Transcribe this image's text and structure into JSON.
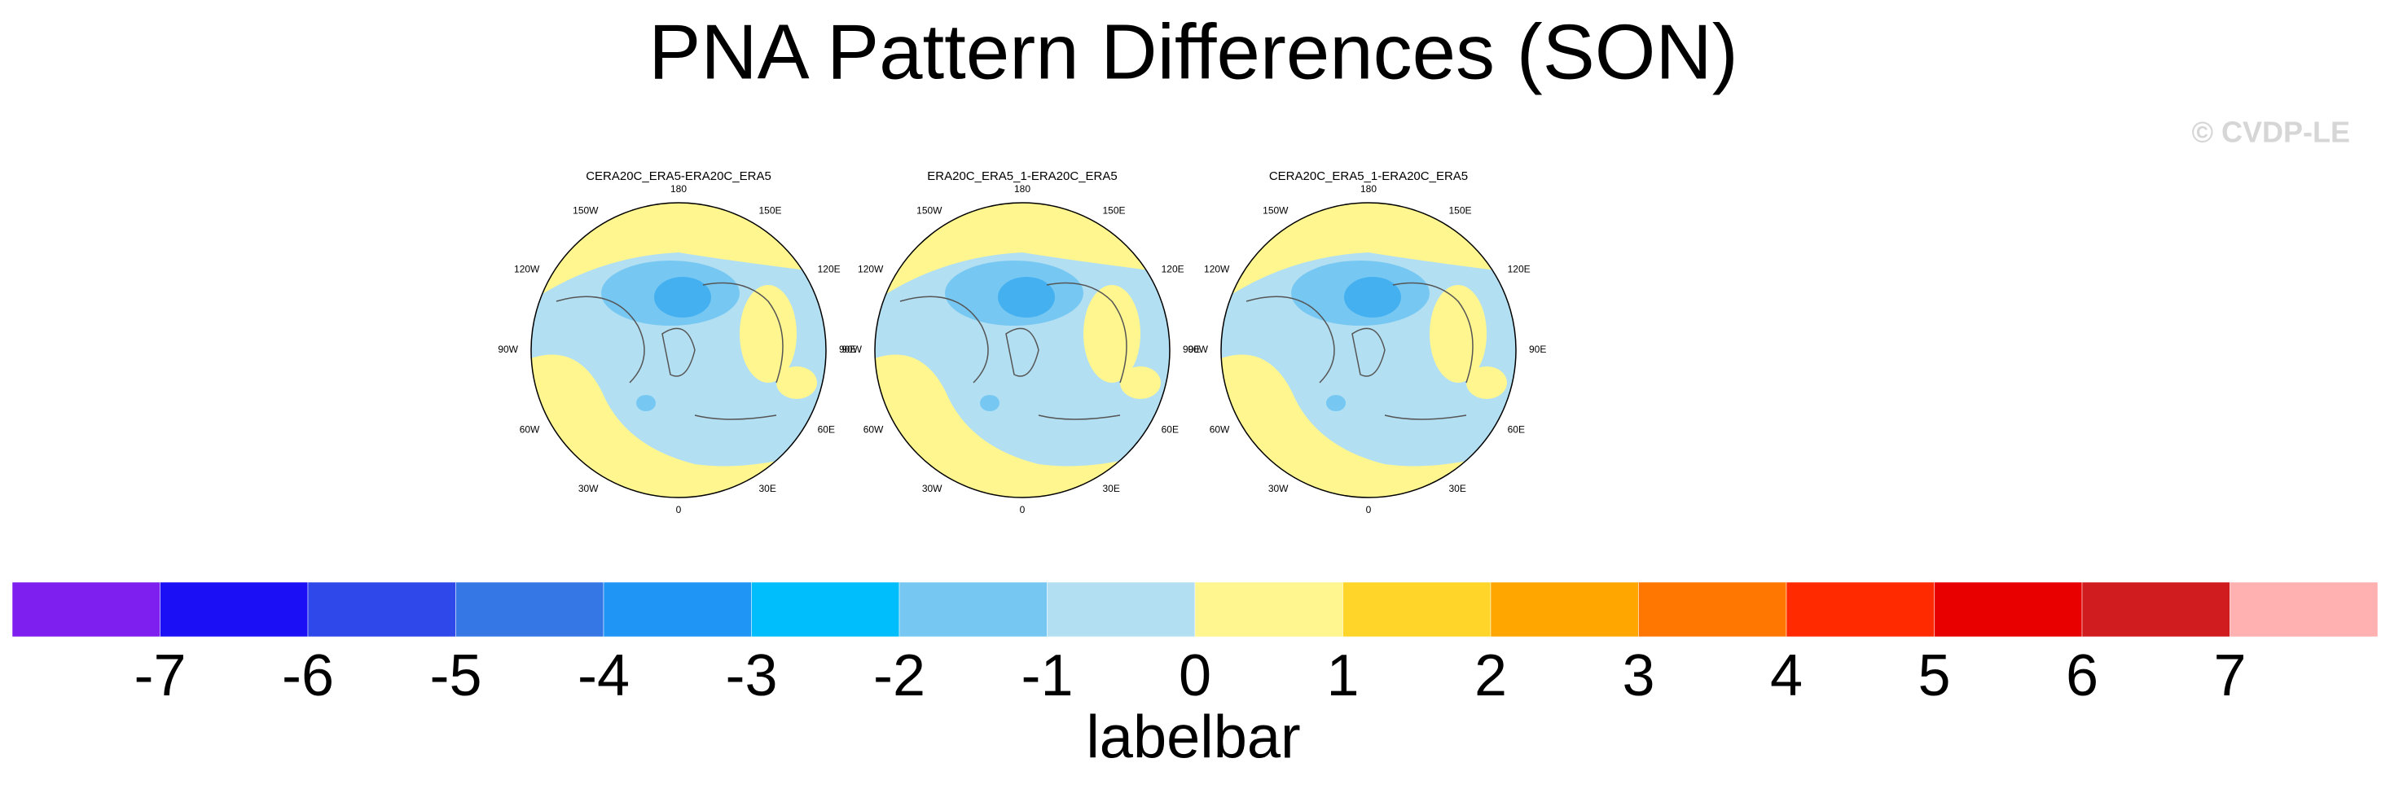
{
  "title": "PNA Pattern Differences (SON)",
  "watermark": "© CVDP-LE",
  "panels": [
    {
      "title": "CERA20C_ERA5-ERA20C_ERA5",
      "longitude_labels": [
        "180",
        "150E",
        "120E",
        "90E",
        "60E",
        "30E",
        "0",
        "30W",
        "60W",
        "90W",
        "120W",
        "150W"
      ]
    },
    {
      "title": "ERA20C_ERA5_1-ERA20C_ERA5",
      "longitude_labels": [
        "180",
        "150E",
        "120E",
        "90E",
        "60E",
        "30E",
        "0",
        "30W",
        "60W",
        "90W",
        "120W",
        "150W"
      ]
    },
    {
      "title": "CERA20C_ERA5_1-ERA20C_ERA5",
      "longitude_labels": [
        "180",
        "150E",
        "120E",
        "90E",
        "60E",
        "30E",
        "0",
        "30W",
        "60W",
        "90W",
        "120W",
        "150W"
      ]
    }
  ],
  "labelbar": {
    "title": "labelbar",
    "ticks": [
      "-7",
      "-6",
      "-5",
      "-4",
      "-3",
      "-2",
      "-1",
      "0",
      "1",
      "2",
      "3",
      "4",
      "5",
      "6",
      "7"
    ],
    "colors": [
      "#7f1fef",
      "#1a0ff5",
      "#2f48ea",
      "#3577e5",
      "#1f96f6",
      "#00bdfb",
      "#76c8f3",
      "#b3dff2",
      "#fff68f",
      "#ffd52a",
      "#ffa600",
      "#ff7700",
      "#ff2a00",
      "#e80000",
      "#d11c1f",
      "#ffb1b1"
    ]
  }
}
